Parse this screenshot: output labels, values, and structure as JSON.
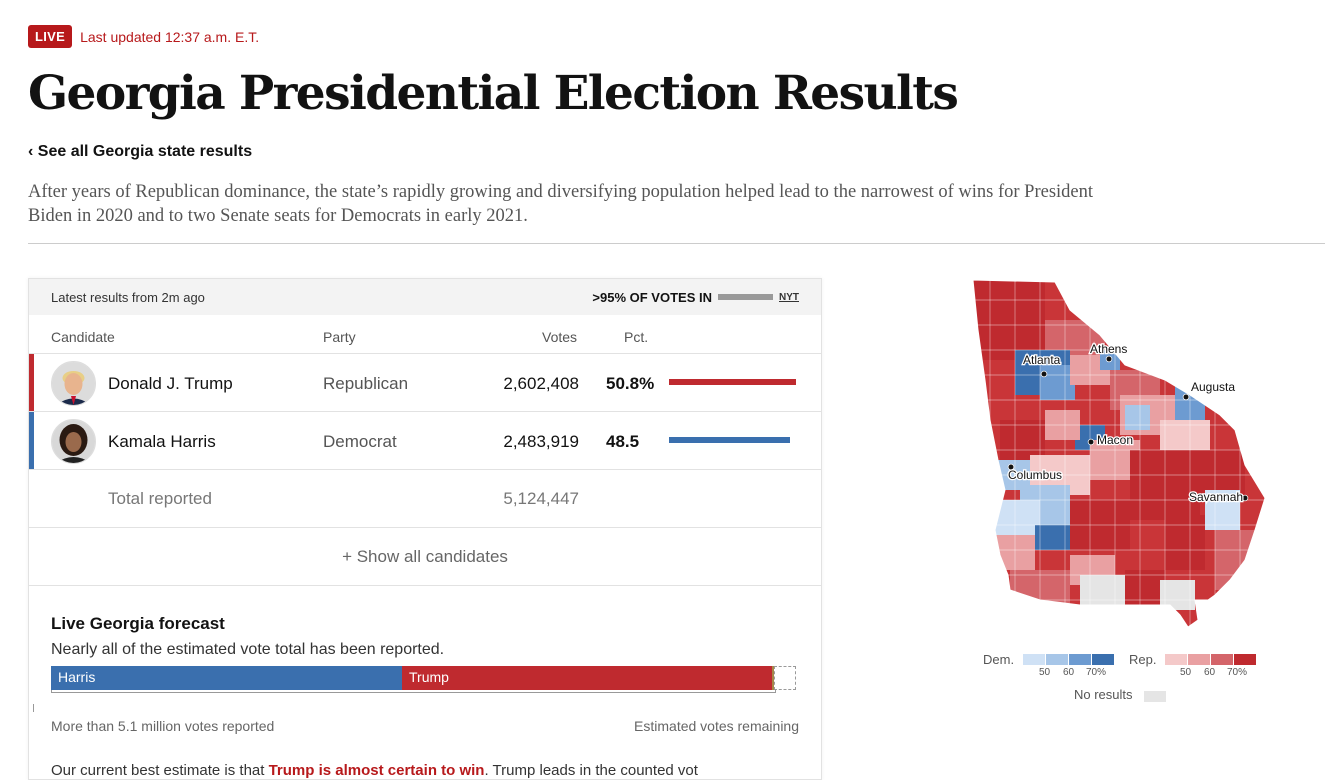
{
  "header": {
    "live_badge": "LIVE",
    "last_updated": "Last updated 12:37 a.m. E.T.",
    "title": "Georgia Presidential Election Results",
    "back_link": "‹ See all Georgia state results",
    "lede": "After years of Republican dominance, the state’s rapidly growing and diversifying population helped lead to the narrowest of wins for President Biden in 2020 and to two Senate seats for Democrats in early 2021."
  },
  "results": {
    "latest": "Latest results from 2m ago",
    "reporting": ">95% OF VOTES IN",
    "source": "NYT",
    "columns": {
      "candidate": "Candidate",
      "party": "Party",
      "votes": "Votes",
      "pct": "Pct."
    },
    "candidates": [
      {
        "name": "Donald J. Trump",
        "party": "Republican",
        "votes": "2,602,408",
        "pct": "50.8%",
        "pct_value": 50.8,
        "color": "#bf2a2f"
      },
      {
        "name": "Kamala Harris",
        "party": "Democrat",
        "votes": "2,483,919",
        "pct": "48.5",
        "pct_value": 48.5,
        "color": "#3a6fae"
      }
    ],
    "total_label": "Total reported",
    "total_votes": "5,124,447",
    "show_all": "+ Show all candidates"
  },
  "forecast": {
    "title": "Live Georgia forecast",
    "subtitle": "Nearly all of the estimated vote total has been reported.",
    "harris_label": "Harris",
    "trump_label": "Trump",
    "harris_share": 0.471,
    "trump_share": 0.497,
    "other_share": 0.003,
    "remaining_share": 0.029,
    "left_note": "More than 5.1 million votes reported",
    "right_note": "Estimated votes remaining",
    "cutoff_text": "Our current best estimate is that",
    "cutoff_bold": "Trump is almost certain to win",
    "cutoff_rest": ". Trump leads in the counted vot"
  },
  "map": {
    "cities": [
      "Atlanta",
      "Athens",
      "Augusta",
      "Macon",
      "Columbus",
      "Savannah"
    ],
    "dem_color": "#3a6fae",
    "rep_color": "#bf2a2f"
  },
  "legend": {
    "dem_label": "Dem.",
    "rep_label": "Rep.",
    "ticks": [
      "50",
      "60",
      "70%"
    ],
    "dem_colors": [
      "#cfe1f5",
      "#a7c6e8",
      "#6d9bd1",
      "#3a6fae"
    ],
    "rep_colors": [
      "#f4c9c9",
      "#e9a0a2",
      "#d4656a",
      "#bf2a2f"
    ],
    "no_results": "No results"
  }
}
